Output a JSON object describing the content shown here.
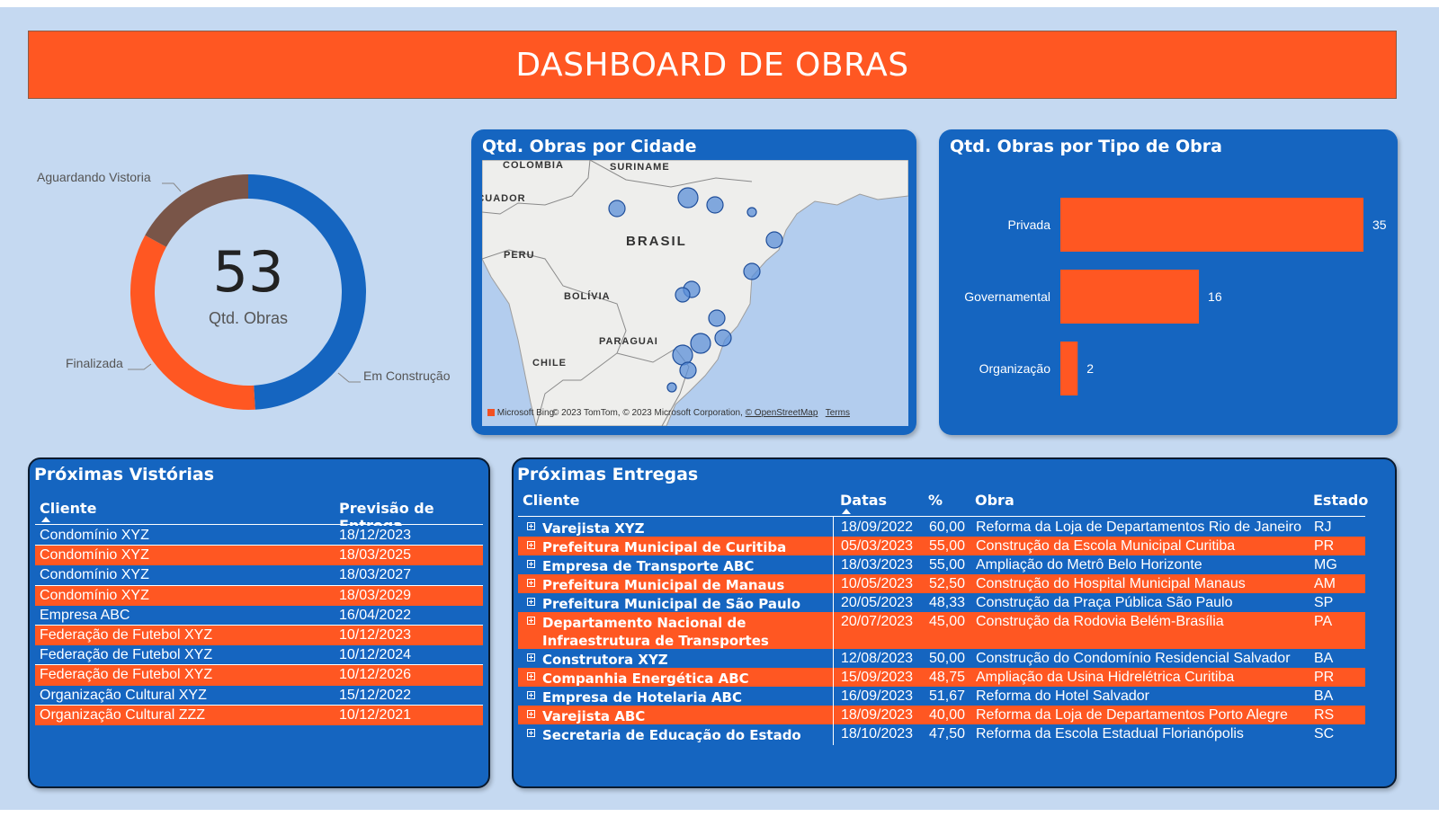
{
  "header": {
    "title": "DASHBOARD DE OBRAS"
  },
  "donut": {
    "total": "53",
    "subtitle": "Qtd. Obras",
    "segments": [
      {
        "label": "Em Construção",
        "value": 26,
        "color": "#1565c0"
      },
      {
        "label": "Finalizada",
        "value": 18,
        "color": "#ff5722"
      },
      {
        "label": "Aguardando Vistoria",
        "value": 9,
        "color": "#795548"
      }
    ]
  },
  "map": {
    "title": "Qtd. Obras por Cidade",
    "countries": [
      "COLOMBIA",
      "SURINAME",
      "ECUADOR",
      "BRASIL",
      "PERU",
      "BOLÍVIA",
      "PARAGUAI",
      "CHILE"
    ],
    "footer_brand": "Microsoft Bing",
    "footer_copy": "© 2023 TomTom, © 2023 Microsoft Corporation,",
    "footer_osm": "© OpenStreetMap",
    "footer_terms": "Terms"
  },
  "bar": {
    "title": "Qtd. Obras por Tipo de Obra"
  },
  "chart_data": {
    "type": "bar",
    "orientation": "horizontal",
    "categories": [
      "Privada",
      "Governamental",
      "Organização"
    ],
    "values": [
      35,
      16,
      2
    ],
    "bar_color": "#ff5722",
    "data_labels": true
  },
  "vistorias": {
    "title": "Próximas Vistórias",
    "col_cliente": "Cliente",
    "col_previsao": "Previsão de Entrega",
    "rows": [
      {
        "cliente": "Condomínio XYZ",
        "data": "18/12/2023"
      },
      {
        "cliente": "Condomínio XYZ",
        "data": "18/03/2025"
      },
      {
        "cliente": "Condomínio XYZ",
        "data": "18/03/2027"
      },
      {
        "cliente": "Condomínio XYZ",
        "data": "18/03/2029"
      },
      {
        "cliente": "Empresa ABC",
        "data": "16/04/2022"
      },
      {
        "cliente": "Federação de Futebol XYZ",
        "data": "10/12/2023"
      },
      {
        "cliente": "Federação de Futebol XYZ",
        "data": "10/12/2024"
      },
      {
        "cliente": "Federação de Futebol XYZ",
        "data": "10/12/2026"
      },
      {
        "cliente": "Organização Cultural XYZ",
        "data": "15/12/2022"
      },
      {
        "cliente": "Organização Cultural ZZZ",
        "data": "10/12/2021"
      }
    ]
  },
  "entregas": {
    "title": "Próximas Entregas",
    "col_cliente": "Cliente",
    "col_datas": "Datas",
    "col_pct": "%",
    "col_obra": "Obra",
    "col_estado": "Estado",
    "rows": [
      {
        "cliente": "Varejista XYZ",
        "data": "18/09/2022",
        "pct": "60,00",
        "obra": "Reforma da Loja de Departamentos Rio de Janeiro",
        "estado": "RJ"
      },
      {
        "cliente": "Prefeitura Municipal de Curitiba",
        "data": "05/03/2023",
        "pct": "55,00",
        "obra": "Construção da Escola Municipal Curitiba",
        "estado": "PR"
      },
      {
        "cliente": "Empresa de Transporte ABC",
        "data": "18/03/2023",
        "pct": "55,00",
        "obra": "Ampliação do Metrô Belo Horizonte",
        "estado": "MG"
      },
      {
        "cliente": "Prefeitura Municipal de Manaus",
        "data": "10/05/2023",
        "pct": "52,50",
        "obra": "Construção do Hospital Municipal Manaus",
        "estado": "AM"
      },
      {
        "cliente": "Prefeitura Municipal de São Paulo",
        "data": "20/05/2023",
        "pct": "48,33",
        "obra": "Construção da Praça Pública São Paulo",
        "estado": "SP"
      },
      {
        "cliente": "Departamento Nacional de Infraestrutura de Transportes",
        "data": "20/07/2023",
        "pct": "45,00",
        "obra": "Construção da Rodovia Belém-Brasília",
        "estado": "PA"
      },
      {
        "cliente": "Construtora XYZ",
        "data": "12/08/2023",
        "pct": "50,00",
        "obra": "Construção do Condomínio Residencial Salvador",
        "estado": "BA"
      },
      {
        "cliente": "Companhia Energética ABC",
        "data": "15/09/2023",
        "pct": "48,75",
        "obra": "Ampliação da Usina Hidrelétrica Curitiba",
        "estado": "PR"
      },
      {
        "cliente": "Empresa de Hotelaria ABC",
        "data": "16/09/2023",
        "pct": "51,67",
        "obra": "Reforma do Hotel Salvador",
        "estado": "BA"
      },
      {
        "cliente": "Varejista ABC",
        "data": "18/09/2023",
        "pct": "40,00",
        "obra": "Reforma da Loja de Departamentos Porto Alegre",
        "estado": "RS"
      },
      {
        "cliente": "Secretaria de Educação do Estado",
        "data": "18/10/2023",
        "pct": "47,50",
        "obra": "Reforma da Escola Estadual Florianópolis",
        "estado": "SC"
      }
    ]
  }
}
